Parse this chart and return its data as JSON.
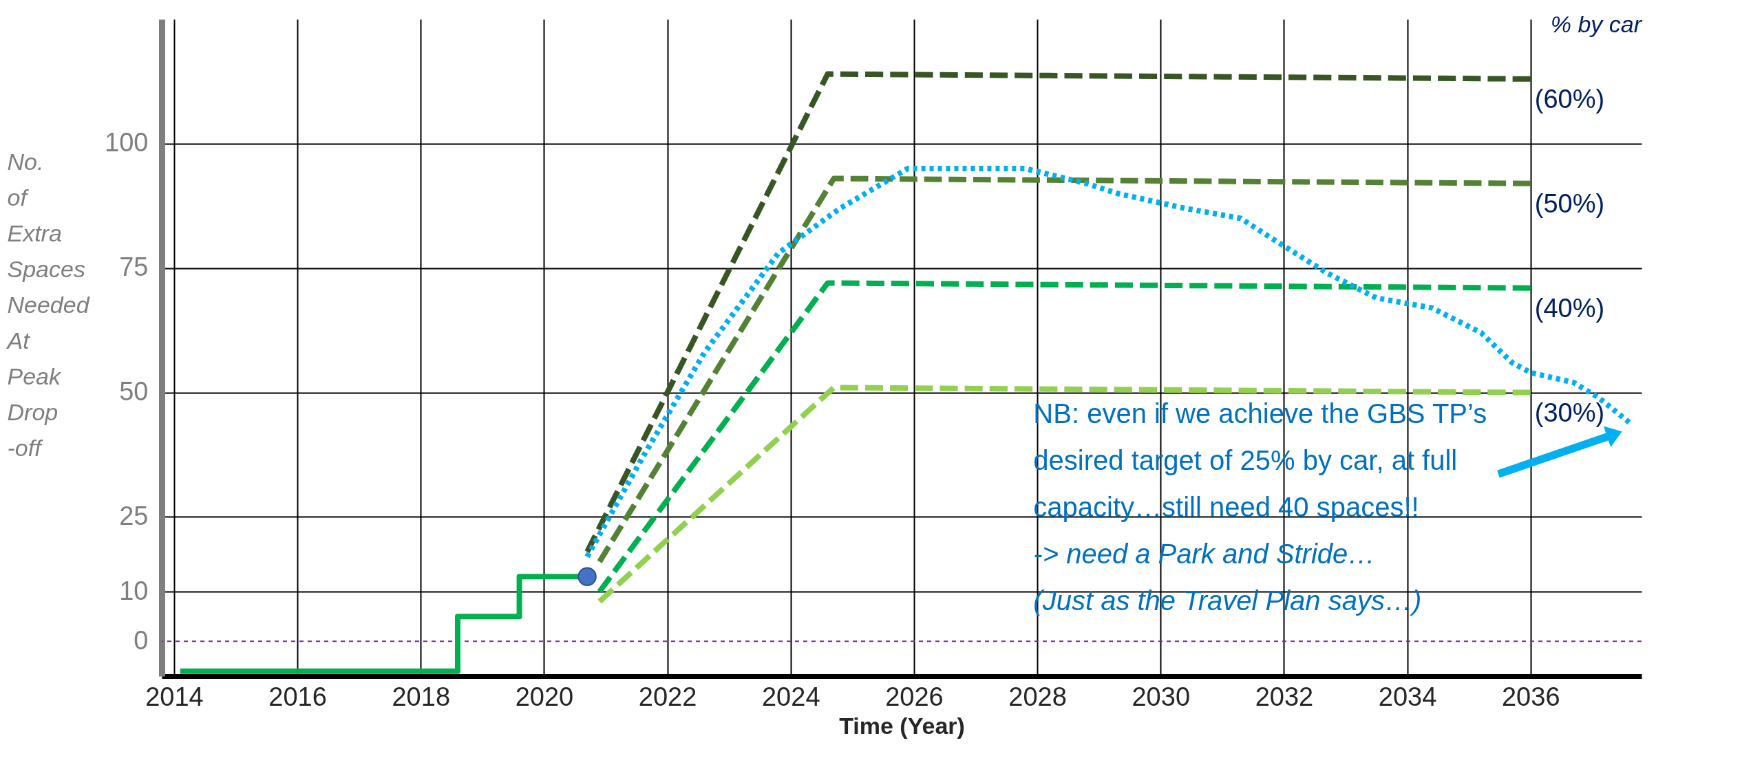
{
  "chart_data": {
    "type": "line",
    "xlabel": "Time (Year)",
    "ylabel": "No. of Extra Spaces Needed At Peak Drop -off",
    "xlim": [
      2013.8,
      2037.8
    ],
    "ylim": [
      -7,
      125
    ],
    "xticks": [
      2014,
      2016,
      2018,
      2020,
      2022,
      2024,
      2026,
      2028,
      2030,
      2032,
      2034,
      2036
    ],
    "yticks": [
      0,
      10,
      25,
      50,
      75,
      100
    ],
    "grid": true,
    "legend": false,
    "series": [
      {
        "type": "step",
        "color": "#00b050",
        "line_style": "solid",
        "x": [
          2014.1,
          2018.6,
          2019.6,
          2020.7
        ],
        "values": [
          -6,
          5,
          13,
          13
        ]
      },
      {
        "name": "(60%)",
        "color": "#375623",
        "line_style": "dashed",
        "x": [
          2020.7,
          2024.6,
          2036
        ],
        "values": [
          18,
          114,
          113
        ]
      },
      {
        "name": "(50%)",
        "color": "#548235",
        "line_style": "dashed",
        "x": [
          2020.9,
          2024.7,
          2036
        ],
        "values": [
          16,
          93,
          92
        ]
      },
      {
        "name": "(40%)",
        "color": "#00b050",
        "line_style": "dashed",
        "x": [
          2020.9,
          2024.6,
          2036
        ],
        "values": [
          10,
          72,
          71
        ]
      },
      {
        "name": "(30%)",
        "color": "#92d050",
        "line_style": "dashed",
        "x": [
          2020.9,
          2024.7,
          2036
        ],
        "values": [
          8,
          51,
          50
        ]
      },
      {
        "color": "#00b0f0",
        "line_style": "dotted",
        "x": [
          2020.7,
          2021.6,
          2022.6,
          2023.8,
          2024.8,
          2025.9,
          2026.5,
          2027.8,
          2028.8,
          2029.3,
          2030.4,
          2031.3,
          2031.8,
          2032.7,
          2033.5,
          2034.4,
          2035.2,
          2035.7,
          2036,
          2036.7,
          2037.1,
          2037.6
        ],
        "values": [
          17,
          37,
          58,
          78,
          87,
          95,
          95,
          95,
          92,
          90,
          87,
          85,
          81,
          74,
          69,
          67,
          62,
          56,
          54,
          52,
          49,
          44
        ]
      },
      {
        "type": "scatter",
        "marker": "circle",
        "color": "#4472c4",
        "x": [
          2020.7
        ],
        "values": [
          13
        ]
      }
    ],
    "ref_lines": [
      {
        "axis": "y",
        "value": 0,
        "color": "#7030a0",
        "line_style": "dotted"
      }
    ],
    "annotations": [
      "% by car",
      "NB: even if we achieve the GBS TP’s",
      "desired target of 25% by car, at full",
      "capacity…still need 40 spaces!!",
      "-> need a Park and Stride…",
      "(Just as the Travel Plan says…)"
    ]
  }
}
